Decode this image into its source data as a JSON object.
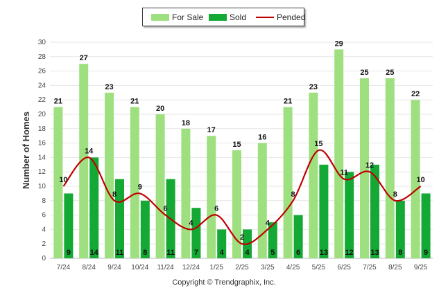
{
  "chart_data": {
    "type": "bar",
    "categories": [
      "7/24",
      "8/24",
      "9/24",
      "10/24",
      "11/24",
      "12/24",
      "1/25",
      "2/25",
      "3/25",
      "4/25",
      "5/25",
      "6/25",
      "7/25",
      "8/25",
      "9/25"
    ],
    "ylabel": "Number of Homes",
    "xlabel": "",
    "ylim": [
      0,
      30
    ],
    "yticks": [
      0,
      2,
      4,
      6,
      8,
      10,
      12,
      14,
      16,
      18,
      20,
      22,
      24,
      26,
      28,
      30
    ],
    "grid": true,
    "legend_position": "top-center",
    "series": [
      {
        "name": "For Sale",
        "type": "bar",
        "color": "#9ee07f",
        "values": [
          21,
          27,
          23,
          21,
          20,
          18,
          17,
          15,
          16,
          21,
          23,
          29,
          25,
          25,
          22
        ]
      },
      {
        "name": "Sold",
        "type": "bar",
        "color": "#14a834",
        "values": [
          9,
          14,
          11,
          8,
          11,
          7,
          4,
          4,
          5,
          6,
          13,
          12,
          13,
          8,
          9
        ]
      },
      {
        "name": "Pended",
        "type": "line",
        "color": "#c00000",
        "values": [
          10,
          14,
          8,
          9,
          6,
          4,
          6,
          2,
          4,
          8,
          15,
          11,
          12,
          8,
          10
        ]
      }
    ]
  },
  "footer": {
    "copyright": "Copyright © Trendgraphix, Inc."
  }
}
